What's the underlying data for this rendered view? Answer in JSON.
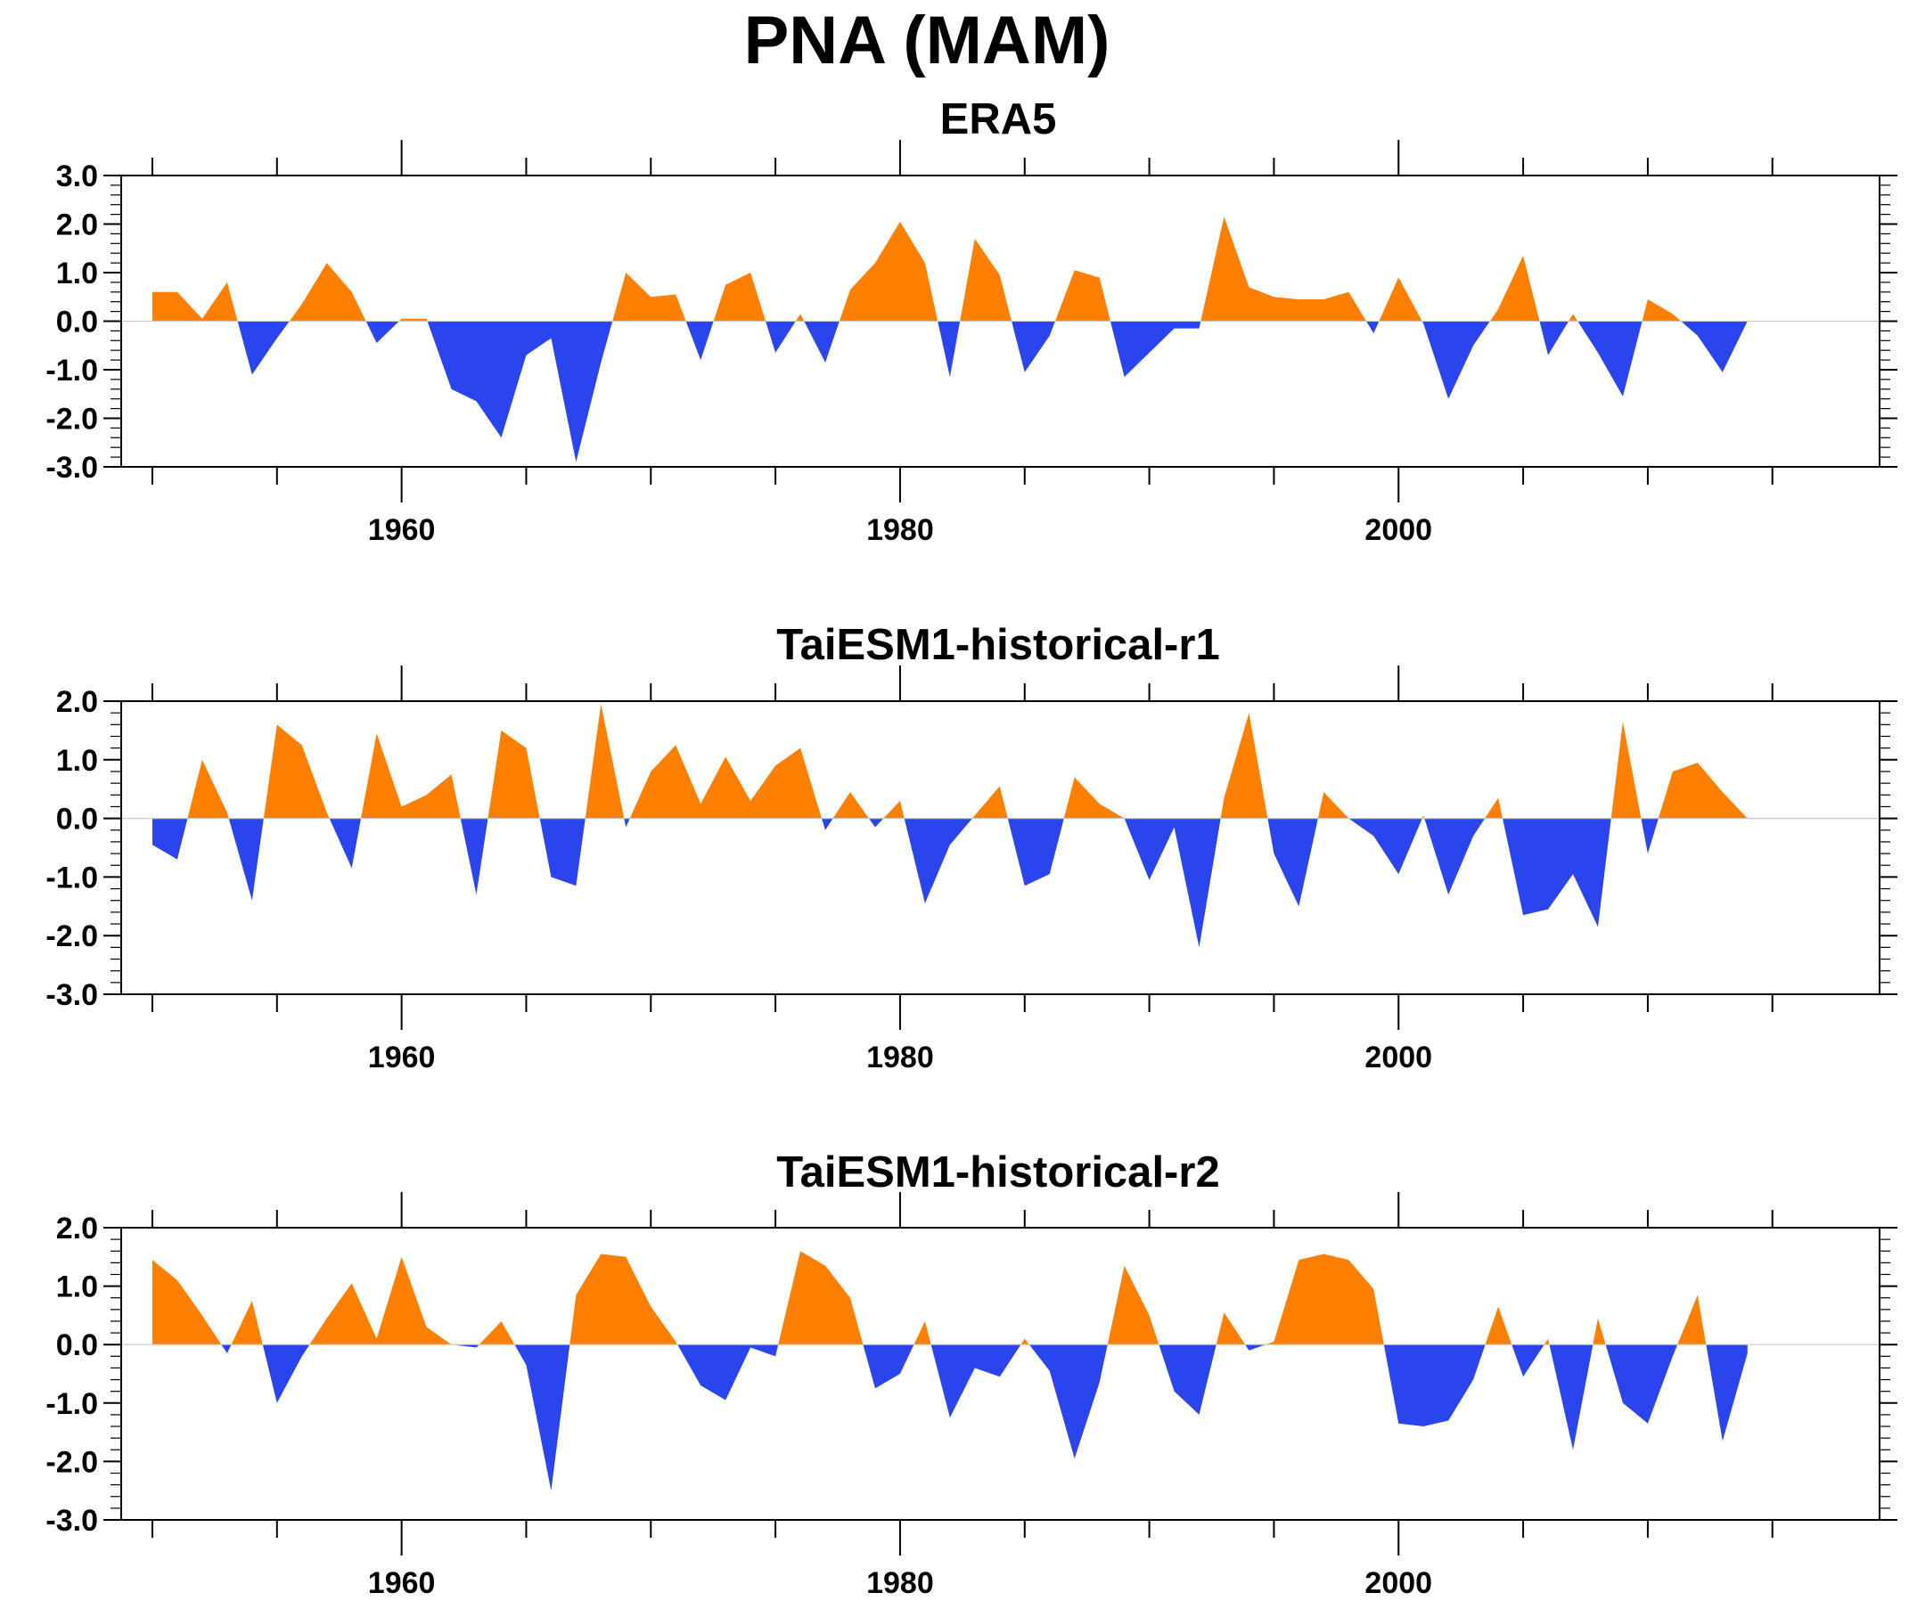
{
  "title": "PNA (MAM)",
  "chart_data": [
    {
      "type": "area",
      "title": "ERA5",
      "x_start": 1950,
      "ylim": [
        -3.0,
        3.0
      ],
      "yticks": [
        "3.0",
        "2.0",
        "1.0",
        "0.0",
        "-1.0",
        "-2.0",
        "-3.0"
      ],
      "xticks": [
        "1960",
        "1980",
        "2000"
      ],
      "positive_color": "#ff8000",
      "negative_color": "#2a45ee",
      "values": [
        0.6,
        0.6,
        0.05,
        0.8,
        -1.1,
        -0.35,
        0.35,
        1.2,
        0.6,
        -0.45,
        0.05,
        0.05,
        -1.4,
        -1.65,
        -2.4,
        -0.7,
        -0.35,
        -2.9,
        -0.85,
        1.0,
        0.5,
        0.55,
        -0.8,
        0.75,
        1.0,
        -0.65,
        0.15,
        -0.85,
        0.65,
        1.2,
        2.05,
        1.2,
        -1.15,
        1.7,
        0.95,
        -1.05,
        -0.3,
        1.05,
        0.9,
        -1.15,
        -0.65,
        -0.15,
        -0.15,
        2.15,
        0.7,
        0.5,
        0.45,
        0.45,
        0.6,
        -0.25,
        0.9,
        -0.05,
        -1.6,
        -0.5,
        0.25,
        1.35,
        -0.7,
        0.15,
        -0.65,
        -1.55,
        0.45,
        0.15,
        -0.3,
        -1.05,
        0.0
      ]
    },
    {
      "type": "area",
      "title": "TaiESM1-historical-r1",
      "x_start": 1950,
      "ylim": [
        -3.0,
        2.0
      ],
      "yticks": [
        "2.0",
        "1.0",
        "0.0",
        "-1.0",
        "-2.0",
        "-3.0"
      ],
      "xticks": [
        "1960",
        "1980",
        "2000"
      ],
      "positive_color": "#ff8000",
      "negative_color": "#2a45ee",
      "values": [
        -0.45,
        -0.7,
        1.0,
        0.1,
        -1.4,
        1.6,
        1.25,
        0.1,
        -0.85,
        1.45,
        0.2,
        0.4,
        0.75,
        -1.3,
        1.5,
        1.2,
        -1.0,
        -1.15,
        1.95,
        -0.15,
        0.8,
        1.25,
        0.25,
        1.05,
        0.3,
        0.9,
        1.2,
        -0.2,
        0.45,
        -0.15,
        0.3,
        -1.45,
        -0.45,
        0.05,
        0.55,
        -1.15,
        -0.95,
        0.7,
        0.25,
        0.0,
        -1.05,
        -0.15,
        -2.2,
        0.35,
        1.8,
        -0.6,
        -1.5,
        0.45,
        0.0,
        -0.3,
        -0.95,
        0.05,
        -1.3,
        -0.3,
        0.35,
        -1.65,
        -1.55,
        -0.95,
        -1.85,
        1.65,
        -0.6,
        0.8,
        0.95,
        0.45,
        0.0
      ]
    },
    {
      "type": "area",
      "title": "TaiESM1-historical-r2",
      "x_start": 1950,
      "ylim": [
        -3.0,
        2.0
      ],
      "yticks": [
        "2.0",
        "1.0",
        "0.0",
        "-1.0",
        "-2.0",
        "-3.0"
      ],
      "xticks": [
        "1960",
        "1980",
        "2000"
      ],
      "positive_color": "#ff8000",
      "negative_color": "#2a45ee",
      "values": [
        1.45,
        1.1,
        0.5,
        -0.15,
        0.75,
        -1.0,
        -0.2,
        0.45,
        1.05,
        0.1,
        1.5,
        0.3,
        0.0,
        -0.05,
        0.4,
        -0.35,
        -2.5,
        0.85,
        1.55,
        1.5,
        0.65,
        0.05,
        -0.7,
        -0.95,
        -0.05,
        -0.2,
        1.6,
        1.35,
        0.8,
        -0.75,
        -0.5,
        0.4,
        -1.25,
        -0.4,
        -0.55,
        0.1,
        -0.45,
        -1.95,
        -0.65,
        1.35,
        0.5,
        -0.8,
        -1.2,
        0.55,
        -0.1,
        0.05,
        1.45,
        1.55,
        1.45,
        0.95,
        -1.35,
        -1.4,
        -1.3,
        -0.6,
        0.65,
        -0.55,
        0.1,
        -1.8,
        0.45,
        -1.0,
        -1.35,
        -0.2,
        0.85,
        -1.65,
        -0.15
      ]
    }
  ]
}
